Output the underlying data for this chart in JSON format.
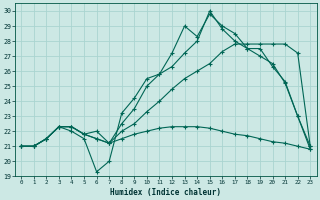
{
  "xlabel": "Humidex (Indice chaleur)",
  "bg_color": "#cce8e4",
  "grid_color": "#aad4d0",
  "line_color": "#006655",
  "xlim": [
    -0.5,
    23.5
  ],
  "ylim": [
    19,
    30.5
  ],
  "yticks": [
    19,
    20,
    21,
    22,
    23,
    24,
    25,
    26,
    27,
    28,
    29,
    30
  ],
  "xticks": [
    0,
    1,
    2,
    3,
    4,
    5,
    6,
    7,
    8,
    9,
    10,
    11,
    12,
    13,
    14,
    15,
    16,
    17,
    18,
    19,
    20,
    21,
    22,
    23
  ],
  "series": [
    [
      21.0,
      21.0,
      21.5,
      22.3,
      22.0,
      21.5,
      19.3,
      20.0,
      23.2,
      24.2,
      25.5,
      25.8,
      27.2,
      29.0,
      28.3,
      29.8,
      29.0,
      28.5,
      27.5,
      27.5,
      26.3,
      25.3,
      23.0,
      20.8
    ],
    [
      21.0,
      21.0,
      21.5,
      22.3,
      22.3,
      21.8,
      22.0,
      21.2,
      22.0,
      22.5,
      23.3,
      24.0,
      24.8,
      25.5,
      26.0,
      26.5,
      27.3,
      27.8,
      27.8,
      27.8,
      27.8,
      27.8,
      27.2,
      21.0
    ],
    [
      21.0,
      21.0,
      21.5,
      22.3,
      22.3,
      21.8,
      21.5,
      21.2,
      22.5,
      23.5,
      25.0,
      25.8,
      26.3,
      27.2,
      28.0,
      30.0,
      28.8,
      28.0,
      27.5,
      27.0,
      26.5,
      25.2,
      23.0,
      21.0
    ],
    [
      21.0,
      21.0,
      21.5,
      22.3,
      22.3,
      21.8,
      21.5,
      21.2,
      21.5,
      21.8,
      22.0,
      22.2,
      22.3,
      22.3,
      22.3,
      22.2,
      22.0,
      21.8,
      21.7,
      21.5,
      21.3,
      21.2,
      21.0,
      20.8
    ]
  ]
}
